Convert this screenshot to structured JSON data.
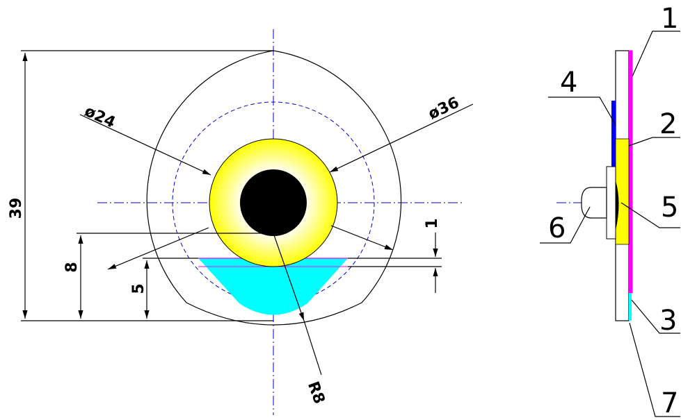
{
  "dimensions": {
    "height_total": "39",
    "inner_diameter": "ø24",
    "outer_diameter": "ø36",
    "offset_8": "8",
    "offset_5": "5",
    "offset_1": "1",
    "radius": "R8"
  },
  "part_numbers": [
    "1",
    "2",
    "3",
    "4",
    "5",
    "6",
    "7"
  ],
  "colors": {
    "centerline": "#0000cc",
    "outline": "#000000",
    "ring": "#ffff00",
    "ring_center": "#ffffee",
    "hole": "#000000",
    "fluid": "#00ffff",
    "magenta_layer": "#ff00ff",
    "blue_layer": "#0000ff",
    "yellow_layer": "#ffff00"
  }
}
